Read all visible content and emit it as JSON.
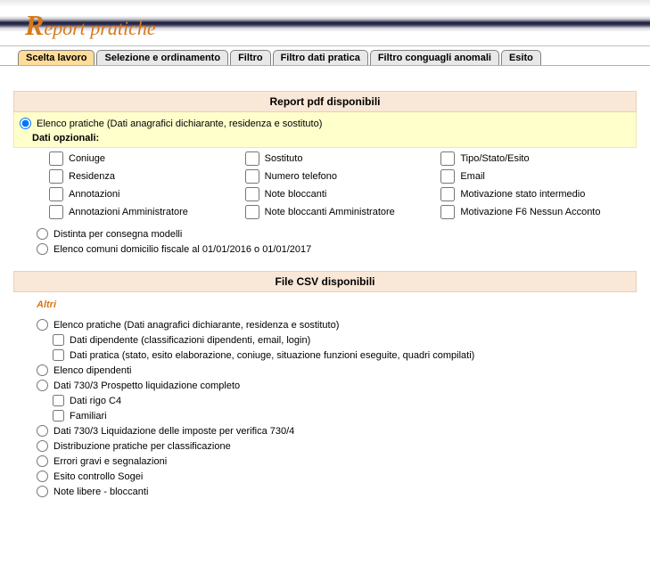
{
  "title": {
    "cap": "R",
    "rest": "eport pratiche"
  },
  "tabs": [
    {
      "label": "Scelta lavoro",
      "active": true
    },
    {
      "label": "Selezione e ordinamento",
      "active": false
    },
    {
      "label": "Filtro",
      "active": false
    },
    {
      "label": "Filtro dati pratica",
      "active": false
    },
    {
      "label": "Filtro conguagli anomali",
      "active": false
    },
    {
      "label": "Esito",
      "active": false
    }
  ],
  "pdf": {
    "header": "Report pdf disponibili",
    "main_radio": "Elenco pratiche (Dati anagrafici dichiarante, residenza e sostituto)",
    "opt_label": "Dati opzionali:",
    "col1": [
      "Coniuge",
      "Residenza",
      "Annotazioni",
      "Annotazioni Amministratore"
    ],
    "col2": [
      "Sostituto",
      "Numero telefono",
      "Note bloccanti",
      "Note bloccanti Amministratore"
    ],
    "col3": [
      "Tipo/Stato/Esito",
      "Email",
      "Motivazione stato intermedio",
      "Motivazione F6 Nessun Acconto"
    ],
    "extra_radios": [
      "Distinta per consegna modelli",
      "Elenco comuni domicilio fiscale al 01/01/2016 o 01/01/2017"
    ]
  },
  "csv": {
    "header": "File CSV disponibili",
    "altri": "Altri",
    "items": [
      {
        "type": "radio",
        "label": "Elenco pratiche (Dati anagrafici dichiarante, residenza e sostituto)"
      },
      {
        "type": "checkbox",
        "label": "Dati dipendente (classificazioni dipendenti, email, login)",
        "sub": true
      },
      {
        "type": "checkbox",
        "label": "Dati pratica (stato, esito elaborazione, coniuge, situazione funzioni eseguite, quadri compilati)",
        "sub": true
      },
      {
        "type": "radio",
        "label": "Elenco dipendenti"
      },
      {
        "type": "radio",
        "label": "Dati 730/3 Prospetto liquidazione completo"
      },
      {
        "type": "checkbox",
        "label": "Dati rigo C4",
        "sub": true
      },
      {
        "type": "checkbox",
        "label": "Familiari",
        "sub": true
      },
      {
        "type": "radio",
        "label": "Dati 730/3 Liquidazione delle imposte per verifica 730/4"
      },
      {
        "type": "radio",
        "label": "Distribuzione pratiche per classificazione"
      },
      {
        "type": "radio",
        "label": "Errori gravi e segnalazioni"
      },
      {
        "type": "radio",
        "label": "Esito controllo Sogei"
      },
      {
        "type": "radio",
        "label": "Note libere - bloccanti"
      }
    ]
  }
}
